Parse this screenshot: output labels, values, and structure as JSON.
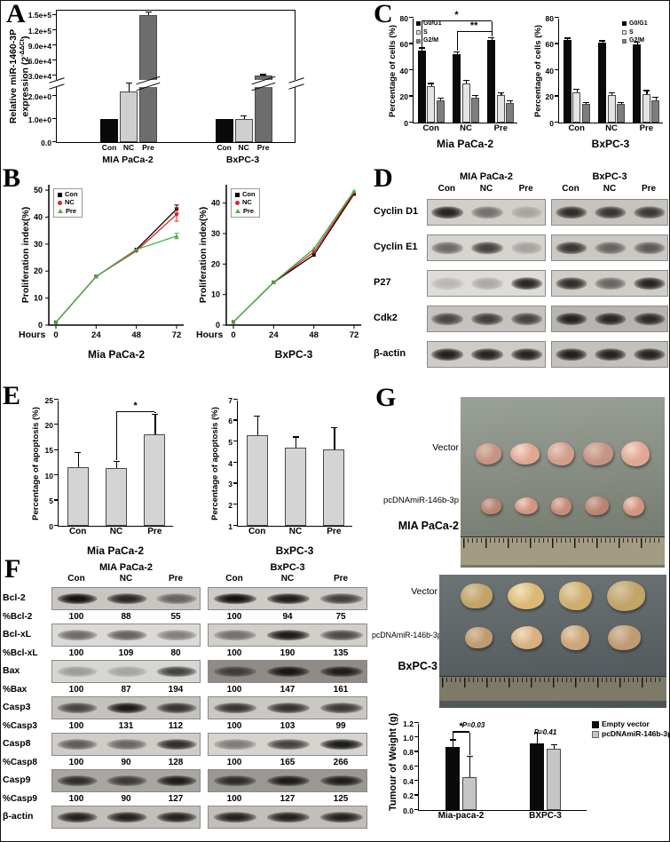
{
  "panelA": {
    "letter": "A",
    "ylabel_line1": "Relative miR-1460-3P",
    "ylabel_line2_pre": "expression (2",
    "ylabel_sup": "-ΔΔCt",
    "ylabel_close": ")"
  },
  "panelB": {
    "letter": "B"
  },
  "panelC": {
    "letter": "C"
  },
  "panelE": {
    "letter": "E"
  },
  "panelD": {
    "letter": "D",
    "col_headers": [
      "MIA PaCa-2",
      "BxPC-3"
    ],
    "lanes": [
      "Con",
      "NC",
      "Pre"
    ],
    "rows": [
      {
        "label": "Cyclin D1",
        "mia": [
          0.9,
          0.5,
          0.22
        ],
        "bx": [
          0.85,
          0.8,
          0.78
        ],
        "bg": [
          "#d2cfca",
          "#c7c4bf"
        ]
      },
      {
        "label": "Cyclin E1",
        "mia": [
          0.55,
          0.75,
          0.25
        ],
        "bx": [
          0.8,
          0.55,
          0.6
        ],
        "bg": [
          "#d6d4cf",
          "#cbc8c3"
        ]
      },
      {
        "label": "P27",
        "mia": [
          0.18,
          0.25,
          0.9
        ],
        "bx": [
          0.85,
          0.55,
          0.9
        ],
        "bg": [
          "#dedcd8",
          "#d0cdc8"
        ]
      },
      {
        "label": "Cdk2",
        "mia": [
          0.7,
          0.75,
          0.72
        ],
        "bx": [
          0.9,
          0.88,
          0.85
        ],
        "bg": [
          "#c6c3be",
          "#b8b5b0"
        ]
      },
      {
        "label": "β-actin",
        "mia": [
          0.92,
          0.9,
          0.9
        ],
        "bx": [
          0.92,
          0.9,
          0.9
        ],
        "bg": [
          "#cfccc7",
          "#c4c1bc"
        ]
      }
    ]
  },
  "panelF": {
    "letter": "F",
    "col_headers": [
      "MIA PaCa-2",
      "BxPC-3"
    ],
    "lanes": [
      "Con",
      "NC",
      "Pre"
    ],
    "rows": [
      {
        "label": "Bcl-2",
        "pct_label": "%Bcl-2",
        "pct": [
          "100",
          "88",
          "55",
          "100",
          "94",
          "75"
        ],
        "mia": [
          1.0,
          0.88,
          0.55
        ],
        "bx": [
          1.0,
          0.94,
          0.75
        ],
        "bg": [
          "#c9c6c1",
          "#cfccc7"
        ]
      },
      {
        "label": "Bcl-xL",
        "pct_label": "%Bcl-xL",
        "pct": [
          "100",
          "109",
          "80",
          "100",
          "190",
          "135"
        ],
        "mia": [
          0.55,
          0.6,
          0.45
        ],
        "bx": [
          0.5,
          0.95,
          0.7
        ],
        "bg": [
          "#dcdad6",
          "#d2cfca"
        ]
      },
      {
        "label": "Bax",
        "pct_label": "%Bax",
        "pct": [
          "100",
          "87",
          "194",
          "100",
          "147",
          "161"
        ],
        "mia": [
          0.3,
          0.26,
          0.75
        ],
        "bx": [
          0.65,
          0.95,
          0.9
        ],
        "bg": [
          "#d8d6d2",
          "#8f8c87"
        ]
      },
      {
        "label": "Casp3",
        "pct_label": "%Casp3",
        "pct": [
          "100",
          "131",
          "112",
          "100",
          "103",
          "99"
        ],
        "mia": [
          0.7,
          0.95,
          0.8
        ],
        "bx": [
          0.8,
          0.82,
          0.78
        ],
        "bg": [
          "#c5c2bd",
          "#cbc8c3"
        ]
      },
      {
        "label": "Casp8",
        "pct_label": "%Casp8",
        "pct": [
          "100",
          "90",
          "128",
          "100",
          "165",
          "266"
        ],
        "mia": [
          0.6,
          0.55,
          0.85
        ],
        "bx": [
          0.45,
          0.75,
          0.95
        ],
        "bg": [
          "#d0cdc8",
          "#d6d4cf"
        ]
      },
      {
        "label": "Casp9",
        "pct_label": "%Casp9",
        "pct": [
          "100",
          "90",
          "127",
          "100",
          "127",
          "125"
        ],
        "mia": [
          0.8,
          0.72,
          0.92
        ],
        "bx": [
          0.8,
          0.92,
          0.9
        ],
        "bg": [
          "#a9a6a1",
          "#9b9893"
        ]
      },
      {
        "label": "β-actin",
        "pct_label": null,
        "pct": null,
        "mia": [
          0.9,
          0.9,
          0.9
        ],
        "bx": [
          0.9,
          0.9,
          0.9
        ],
        "bg": [
          "#c2bfba",
          "#c2bfba"
        ]
      }
    ]
  },
  "panelG": {
    "letter": "G",
    "photos": [
      {
        "caption": "MIA PaCa-2",
        "bg_top": "#9aa197",
        "bg_bottom": "#6e7468",
        "ruler": "#a39c82",
        "rows": [
          {
            "label": "Vector",
            "count": 5,
            "size": 32,
            "color": "#d7a18f"
          },
          {
            "label": "pcDNAmiR-146b-3p",
            "count": 5,
            "size": 25,
            "color": "#c98f7c"
          }
        ]
      },
      {
        "caption": "BxPC-3",
        "bg_top": "#6d7476",
        "bg_bottom": "#4c5356",
        "ruler": "#7e7a68",
        "rows": [
          {
            "label": "Vector",
            "count": 4,
            "size": 40,
            "color": "#d2b270"
          },
          {
            "label": "pcDNAmiR-146b-3p",
            "count": 4,
            "size": 34,
            "color": "#cfa97a"
          }
        ]
      }
    ]
  },
  "chart_data": [
    {
      "id": "A",
      "type": "bar",
      "title": "",
      "ylabel": "Relative miR-1460-3P expression (2^-ΔΔCt)",
      "broken_axis": true,
      "lower_axis": {
        "vmax": 2.4,
        "ticks": [
          {
            "v": 0,
            "label": "0.0"
          },
          {
            "v": 1,
            "label": "1.0e+0"
          },
          {
            "v": 2,
            "label": "2.0e+0"
          }
        ]
      },
      "upper_axis": {
        "vmin": 22000,
        "vmax": 162000,
        "ticks": [
          {
            "v": 30000,
            "label": "3.0e+4"
          },
          {
            "v": 60000,
            "label": "6.0e+4"
          },
          {
            "v": 90000,
            "label": "9.0e+4"
          },
          {
            "v": 120000,
            "label": "1.2e+5"
          },
          {
            "v": 150000,
            "label": "1.5e+5"
          }
        ]
      },
      "groups": [
        {
          "label": "MIA PaCa-2",
          "categories": [
            "Con",
            "NC",
            "Pre"
          ],
          "values": [
            1.0,
            2.2,
            150000
          ],
          "errors": [
            0,
            0.35,
            5000
          ]
        },
        {
          "label": "BxPC-3",
          "categories": [
            "Con",
            "NC",
            "Pre"
          ],
          "values": [
            1.0,
            1.0,
            30000
          ],
          "errors": [
            0,
            0.12,
            1500
          ]
        }
      ],
      "bar_colors": [
        "#0a0a0a",
        "#cfcfcf",
        "#6d6d6d"
      ]
    },
    {
      "id": "B1",
      "type": "line",
      "title": "Mia PaCa-2",
      "ylabel": "Proliferation index(%)",
      "xlabel": "Hours",
      "x": [
        0,
        24,
        48,
        72
      ],
      "ylim": [
        0,
        52
      ],
      "yticks": [
        0,
        10,
        20,
        30,
        40,
        50
      ],
      "series": [
        {
          "name": "Con",
          "color": "#000000",
          "marker": "square",
          "values": [
            1,
            18,
            28,
            43
          ],
          "err_last": 1.5
        },
        {
          "name": "NC",
          "color": "#e8211d",
          "marker": "circle",
          "values": [
            1,
            18,
            27.5,
            41
          ],
          "err_last": 2.5
        },
        {
          "name": "Pre",
          "color": "#3ab54a",
          "marker": "triangle",
          "values": [
            1,
            18,
            28,
            33
          ],
          "err_last": 1
        }
      ]
    },
    {
      "id": "B2",
      "type": "line",
      "title": "BxPC-3",
      "ylabel": "Proliferation index(%)",
      "xlabel": "Hours",
      "x": [
        0,
        24,
        48,
        72
      ],
      "ylim": [
        0,
        46
      ],
      "yticks": [
        0,
        10,
        20,
        30,
        40
      ],
      "series": [
        {
          "name": "Con",
          "color": "#000000",
          "marker": "square",
          "values": [
            1,
            14,
            23,
            43
          ]
        },
        {
          "name": "NC",
          "color": "#e8211d",
          "marker": "circle",
          "values": [
            1,
            14,
            24,
            43.5
          ]
        },
        {
          "name": "Pre",
          "color": "#3ab54a",
          "marker": "triangle",
          "values": [
            1,
            14,
            25,
            44
          ]
        }
      ]
    },
    {
      "id": "C1",
      "type": "grouped_bar",
      "title": "Mia PaCa-2",
      "ylabel": "Percentage of cells (%)",
      "categories": [
        "Con",
        "NC",
        "Pre"
      ],
      "ylim": [
        0,
        80
      ],
      "yticks": [
        {
          "v": 0,
          "label": "0"
        },
        {
          "v": 20,
          "label": "20"
        },
        {
          "v": 40,
          "label": "40"
        },
        {
          "v": 60,
          "label": "60"
        },
        {
          "v": 80,
          "label": "80"
        }
      ],
      "series": [
        {
          "name": "G0/G1",
          "color": "#0a0a0a",
          "values": [
            55,
            52,
            63
          ],
          "errors": [
            1.5,
            1.5,
            1.5
          ]
        },
        {
          "name": "S",
          "color": "#e4e4e4",
          "values": [
            28,
            30,
            21
          ],
          "errors": [
            1.5,
            2,
            1.5
          ]
        },
        {
          "name": "G2/M",
          "color": "#7d7d7d",
          "values": [
            17,
            19,
            15
          ],
          "errors": [
            1,
            1.5,
            1
          ]
        }
      ],
      "sigs": [
        {
          "label": "*",
          "c1": 0,
          "s1": 0,
          "c2": 2,
          "s2": 0,
          "v": 77
        },
        {
          "label": "**",
          "c1": 1,
          "s1": 0,
          "c2": 2,
          "s2": 0,
          "v": 69
        }
      ]
    },
    {
      "id": "C2",
      "type": "grouped_bar",
      "title": "BxPC-3",
      "ylabel": "Percentage of cells (%)",
      "categories": [
        "Con",
        "NC",
        "Pre"
      ],
      "ylim": [
        0,
        80
      ],
      "yticks": [
        {
          "v": 0,
          "label": "0"
        },
        {
          "v": 20,
          "label": "20"
        },
        {
          "v": 40,
          "label": "40"
        },
        {
          "v": 60,
          "label": "60"
        },
        {
          "v": 80,
          "label": "80"
        }
      ],
      "series": [
        {
          "name": "G0/G1",
          "color": "#0a0a0a",
          "values": [
            63,
            61,
            60
          ],
          "errors": [
            1,
            1,
            1
          ]
        },
        {
          "name": "S",
          "color": "#e4e4e4",
          "values": [
            23,
            21,
            22
          ],
          "errors": [
            2,
            1.5,
            2
          ]
        },
        {
          "name": "G2/M",
          "color": "#7d7d7d",
          "values": [
            14,
            14,
            17
          ],
          "errors": [
            1,
            1,
            2
          ]
        }
      ]
    },
    {
      "id": "E1",
      "type": "bar",
      "title": "Mia PaCa-2",
      "ylabel": "Percentage of apoptosis (%)",
      "categories": [
        "Con",
        "NC",
        "Pre"
      ],
      "ylim": [
        0,
        25
      ],
      "yticks": [
        {
          "v": 0,
          "label": "0"
        },
        {
          "v": 5,
          "label": "5"
        },
        {
          "v": 10,
          "label": "10"
        },
        {
          "v": 15,
          "label": "15"
        },
        {
          "v": 20,
          "label": "20"
        },
        {
          "v": 25,
          "label": "25"
        }
      ],
      "bar_color": "#d4d4d4",
      "values": [
        11.6,
        11.5,
        18.2
      ],
      "errors": [
        2.8,
        1.1,
        3.8
      ],
      "sigs": [
        {
          "label": "*",
          "c1": 1,
          "c2": 2,
          "v": 22.5
        }
      ]
    },
    {
      "id": "E2",
      "type": "bar",
      "title": "BxPC-3",
      "ylabel": "Percentage of apoptosis (%)",
      "categories": [
        "Con",
        "NC",
        "Pre"
      ],
      "ylim": [
        1,
        7
      ],
      "yticks": [
        {
          "v": 1,
          "label": "1"
        },
        {
          "v": 2,
          "label": "2"
        },
        {
          "v": 3,
          "label": "3"
        },
        {
          "v": 4,
          "label": "4"
        },
        {
          "v": 5,
          "label": "5"
        },
        {
          "v": 6,
          "label": "6"
        },
        {
          "v": 7,
          "label": "7"
        }
      ],
      "bar_color": "#d4d4d4",
      "values": [
        5.3,
        4.7,
        4.65
      ],
      "errors": [
        0.9,
        0.5,
        1.0
      ]
    },
    {
      "id": "G",
      "type": "grouped_bar",
      "title": "",
      "ylabel": "Tumour of Weight (g)",
      "categories": [
        "Mia-paca-2",
        "BXPC-3"
      ],
      "ylim": [
        0,
        1.2
      ],
      "yticks": [
        {
          "v": 0,
          "label": "0.0"
        },
        {
          "v": 0.2,
          "label": "0.2"
        },
        {
          "v": 0.4,
          "label": "0.4"
        },
        {
          "v": 0.6,
          "label": "0.6"
        },
        {
          "v": 0.8,
          "label": "0.8"
        },
        {
          "v": 1.0,
          "label": "1.0"
        },
        {
          "v": 1.2,
          "label": "1.2"
        }
      ],
      "series": [
        {
          "name": "Empty vector",
          "color": "#0a0a0a",
          "values": [
            0.87,
            0.92
          ],
          "errors": [
            0.09,
            0.13
          ]
        },
        {
          "name": "pcDNAmiR-146b-3p",
          "color": "#c6c6c6",
          "values": [
            0.45,
            0.84
          ],
          "errors": [
            0.28,
            0.05
          ]
        }
      ],
      "sigs": [
        {
          "label": "*",
          "c1": 0,
          "s1": 0,
          "c2": 0,
          "s2": 1,
          "v": 1.07
        }
      ],
      "texts": [
        {
          "label": "P=0.03",
          "c": 0,
          "v": 1.12,
          "dx": 14
        },
        {
          "label": "P=0.41",
          "c": 1,
          "v": 1.02,
          "dx": 0
        }
      ]
    }
  ]
}
